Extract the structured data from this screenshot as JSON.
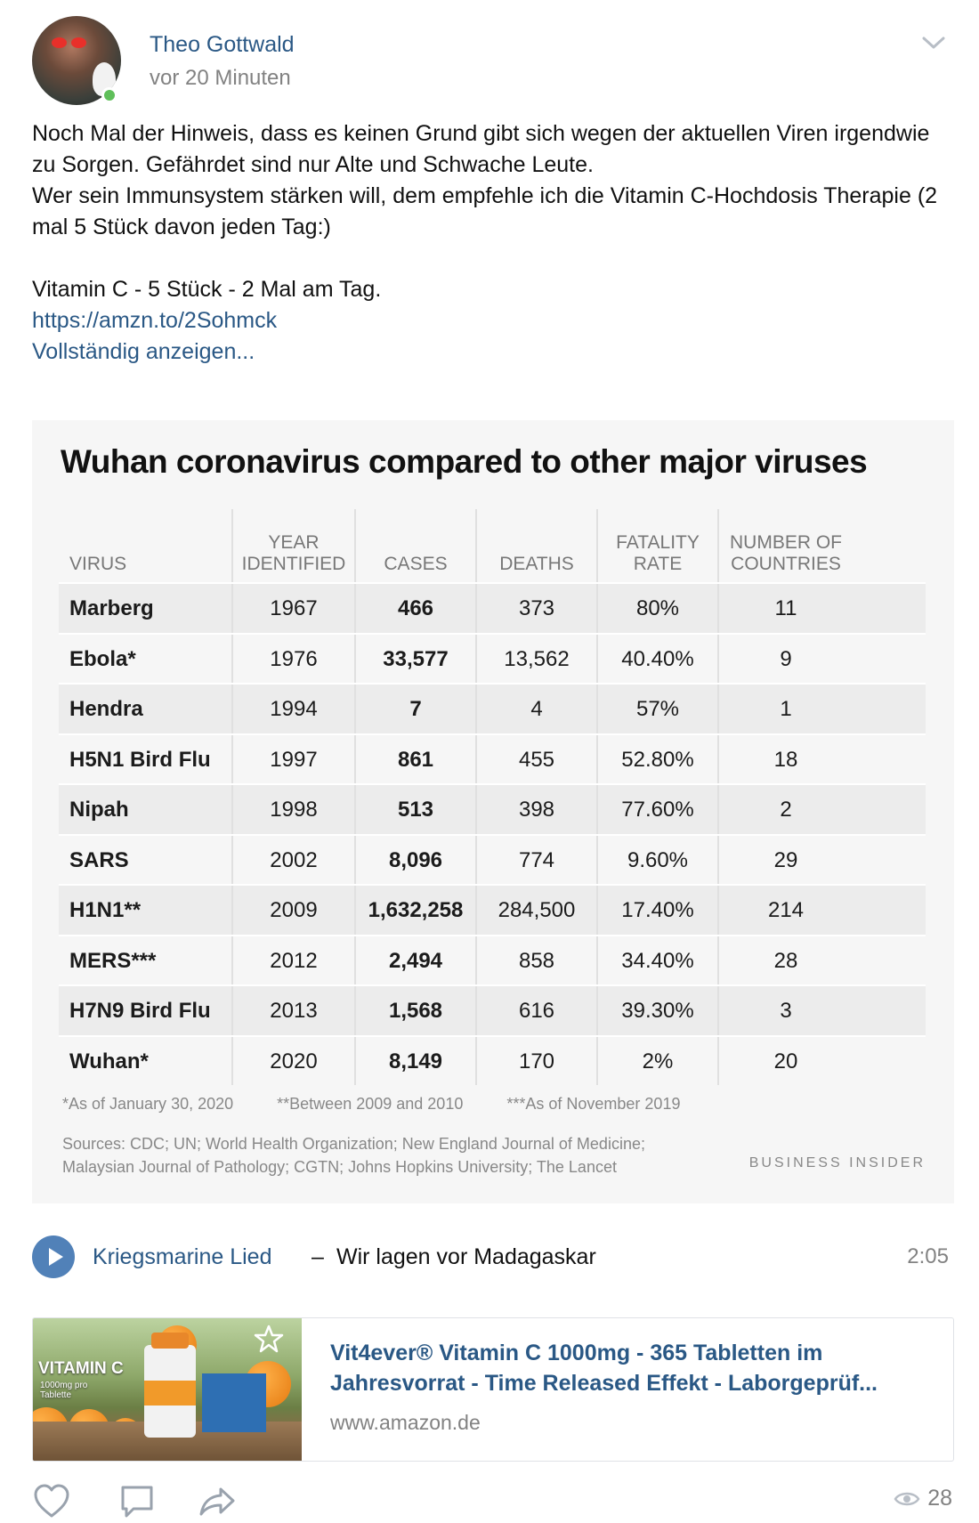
{
  "post": {
    "author": "Theo Gottwald",
    "time": "vor 20 Minuten",
    "text_1": "Noch Mal der Hinweis, dass es keinen Grund gibt sich wegen der aktuellen Viren irgendwie zu Sorgen. Gefährdet sind nur Alte und Schwache Leute.",
    "text_2": "Wer sein Immunsystem stärken will, dem empfehle ich die Vitamin C-Hochdosis Therapie (2 mal 5 Stück davon jeden Tag:)",
    "text_3": "Vitamin C - 5 Stück - 2 Mal am Tag.",
    "link": "https://amzn.to/2Sohmck",
    "show_more": "Vollständig anzeigen..."
  },
  "image_table": {
    "title": "Wuhan coronavirus compared to other major viruses",
    "headers": {
      "virus": "VIRUS",
      "year": [
        "YEAR",
        "IDENTIFIED"
      ],
      "cases": "CASES",
      "deaths": "DEATHS",
      "fatality": [
        "FATALITY",
        "RATE"
      ],
      "countries": [
        "NUMBER OF",
        "COUNTRIES"
      ]
    },
    "rows": [
      {
        "virus": "Marberg",
        "year": "1967",
        "cases": "466",
        "deaths": "373",
        "fatality": "80%",
        "countries": "11"
      },
      {
        "virus": "Ebola*",
        "year": "1976",
        "cases": "33,577",
        "deaths": "13,562",
        "fatality": "40.40%",
        "countries": "9"
      },
      {
        "virus": "Hendra",
        "year": "1994",
        "cases": "7",
        "deaths": "4",
        "fatality": "57%",
        "countries": "1"
      },
      {
        "virus": "H5N1 Bird Flu",
        "year": "1997",
        "cases": "861",
        "deaths": "455",
        "fatality": "52.80%",
        "countries": "18"
      },
      {
        "virus": "Nipah",
        "year": "1998",
        "cases": "513",
        "deaths": "398",
        "fatality": "77.60%",
        "countries": "2"
      },
      {
        "virus": "SARS",
        "year": "2002",
        "cases": "8,096",
        "deaths": "774",
        "fatality": "9.60%",
        "countries": "29"
      },
      {
        "virus": "H1N1**",
        "year": "2009",
        "cases": "1,632,258",
        "deaths": "284,500",
        "fatality": "17.40%",
        "countries": "214"
      },
      {
        "virus": "MERS***",
        "year": "2012",
        "cases": "2,494",
        "deaths": "858",
        "fatality": "34.40%",
        "countries": "28"
      },
      {
        "virus": "H7N9 Bird Flu",
        "year": "2013",
        "cases": "1,568",
        "deaths": "616",
        "fatality": "39.30%",
        "countries": "3"
      },
      {
        "virus": "Wuhan*",
        "year": "2020",
        "cases": "8,149",
        "deaths": "170",
        "fatality": "2%",
        "countries": "20"
      }
    ],
    "footnotes": [
      "*As of January 30, 2020",
      "**Between 2009 and 2010",
      "***As of November 2019"
    ],
    "sources_1": "Sources: CDC; UN; World Health Organization; New England Journal of Medicine;",
    "sources_2": "Malaysian Journal of Pathology; CGTN; Johns Hopkins University; The Lancet",
    "logo": "BUSINESS INSIDER"
  },
  "audio": {
    "artist": "Kriegsmarine Lied",
    "dash": "–",
    "track": "Wir lagen vor Madagaskar",
    "duration": "2:05"
  },
  "snippet": {
    "title": "Vit4ever® Vitamin C 1000mg - 365 Tabletten im Jahresvorrat - Time Released Effekt - Laborgeprüf...",
    "domain": "www.amazon.de",
    "thumb_title": "VITAMIN C",
    "thumb_sub": "1000mg pro Tablette"
  },
  "actions": {
    "views": "28"
  },
  "colors": {
    "link": "#2a5885",
    "muted": "#828282",
    "play": "#5181b8",
    "online": "#5fbf5a"
  }
}
